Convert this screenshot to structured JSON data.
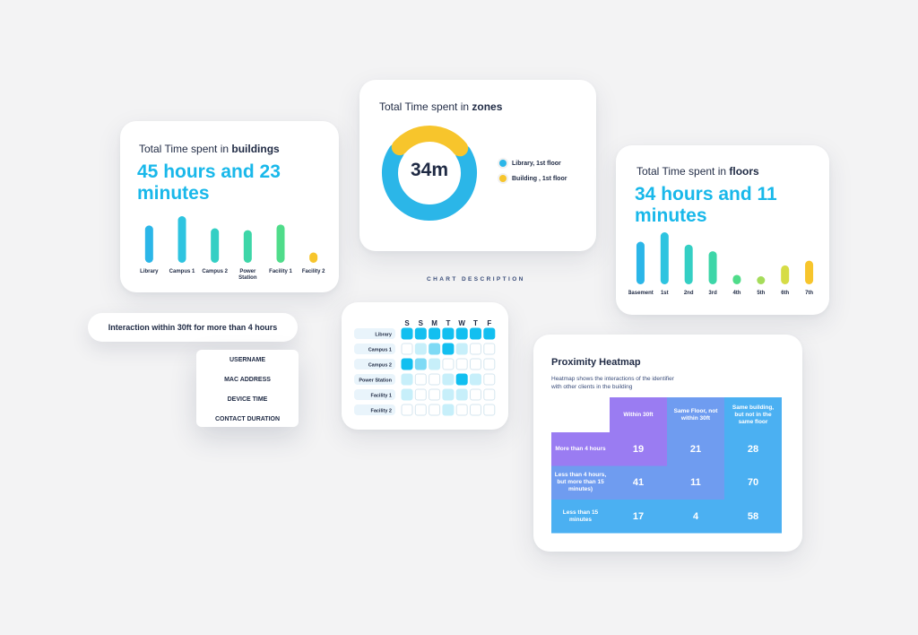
{
  "buildings_card": {
    "title_prefix": "Total Time spent in ",
    "title_bold": "buildings",
    "value": "45 hours and 23 minutes"
  },
  "zones_card": {
    "title_prefix": "Total Time spent in ",
    "title_bold": "zones",
    "center_value": "34m",
    "legend": [
      {
        "label": "Library, 1st floor",
        "color": "#2bb6e8"
      },
      {
        "label": "Building , 1st floor",
        "color": "#f7c52c"
      }
    ]
  },
  "floors_card": {
    "title_prefix": "Total Time spent in ",
    "title_bold": "floors",
    "value": "34 hours and 11 minutes"
  },
  "chart_description": "CHART DESCRIPTION",
  "interaction_pill": "Interaction within 30ft for more than 4 hours",
  "dropdown": {
    "items": [
      "USERNAME",
      "MAC ADDRESS",
      "DEVICE TIME",
      "CONTACT DURATION"
    ]
  },
  "proximity": {
    "title": "Proximity Heatmap",
    "subtitle_line1": "Heatmap shows the interactions of the identifier",
    "subtitle_line2": "with other clients in the building",
    "col_headers": [
      "Within 30ft",
      "Same Floor, not within 30ft",
      "Same building, but not in the same floor"
    ],
    "row_headers": [
      "More than 4 hours",
      "Less than 4 hours, but more than 15 minutes)",
      "Less than 15 minutes"
    ]
  },
  "chart_data": [
    {
      "type": "bar",
      "categories": [
        "Library",
        "Campus 1",
        "Campus 2",
        "Power Station",
        "Facility 1",
        "Facility 2"
      ],
      "values": [
        40,
        50,
        37,
        35,
        41,
        11
      ],
      "colors": [
        "#2bb6e8",
        "#2ec4e0",
        "#34cfc4",
        "#3dd6a8",
        "#4fdc8a",
        "#f7c52c"
      ],
      "ylim": [
        0,
        50
      ]
    },
    {
      "type": "pie",
      "categories": [
        "Library, 1st floor",
        "Building , 1st floor"
      ],
      "values": [
        70,
        30
      ],
      "colors": [
        "#2bb6e8",
        "#f7c52c"
      ],
      "center_label": "34m"
    },
    {
      "type": "bar",
      "categories": [
        "Basement",
        "1st",
        "2nd",
        "3rd",
        "4th",
        "5th",
        "6th",
        "7th"
      ],
      "values": [
        45,
        55,
        42,
        35,
        10,
        4,
        20,
        25
      ],
      "colors": [
        "#2bb6e8",
        "#2ec4e0",
        "#34cfc4",
        "#3dd6a8",
        "#4fdc8a",
        "#a5dc5a",
        "#d6dc46",
        "#f7c52c"
      ],
      "ylim": [
        0,
        55
      ]
    },
    {
      "type": "heatmap",
      "x": [
        "S",
        "S",
        "M",
        "T",
        "W",
        "T",
        "F"
      ],
      "y": [
        "Library",
        "Campus 1",
        "Campus 2",
        "Power Station",
        "Facility 1",
        "Facility 2"
      ],
      "values": [
        [
          3,
          3,
          3,
          3,
          3,
          3,
          3
        ],
        [
          0,
          1,
          2,
          3,
          1,
          0,
          0
        ],
        [
          3,
          2,
          1,
          0,
          0,
          0,
          0
        ],
        [
          1,
          0,
          0,
          1,
          3,
          1,
          0
        ],
        [
          1,
          0,
          0,
          1,
          1,
          0,
          0
        ],
        [
          0,
          0,
          0,
          1,
          0,
          0,
          0
        ]
      ],
      "colors": [
        "#ffffff",
        "#c7effa",
        "#7fdaf5",
        "#12bff0"
      ]
    },
    {
      "type": "heatmap",
      "x": [
        "Within 30ft",
        "Same Floor, not within 30ft",
        "Same building, but not in the same floor"
      ],
      "y": [
        "More than 4 hours",
        "Less than 4 hours, but more than 15 minutes)",
        "Less than 15 minutes"
      ],
      "values": [
        [
          19,
          21,
          28
        ],
        [
          41,
          11,
          70
        ],
        [
          17,
          4,
          58
        ]
      ],
      "colors": [
        "#9a7cf2",
        "#6f9cf0",
        "#4bb0f2"
      ]
    }
  ]
}
